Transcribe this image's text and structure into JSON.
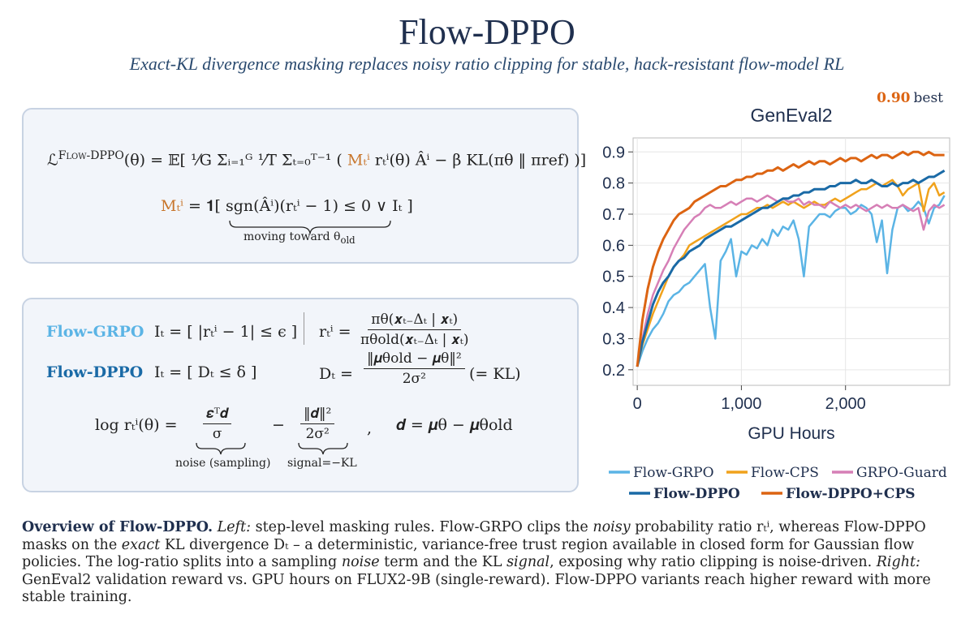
{
  "header": {
    "title": "Flow-DPPO",
    "subtitle": "Exact-KL divergence masking replaces noisy ratio clipping for stable, hack-resistant flow-model RL"
  },
  "objective_panel": {
    "loss_symbol": "ℒ",
    "loss_name": "Flow-DPPO",
    "loss_rhs": "(θ) = 𝔼[ ¹⁄G Σᵢ₌₁ᴳ ¹⁄T Σₜ₌₀ᵀ⁻¹ (",
    "mask_symbol": "Mₜⁱ",
    "loss_tail": "rₜⁱ(θ) Âⁱ − β KL(πθ ‖ πref) )]",
    "mask_eq": "= 𝟏[",
    "mask_condition": "sgn(Âⁱ)(rₜⁱ − 1) ≤ 0",
    "mask_tail": "∨  Iₜ ]",
    "brace_label": "moving toward θ",
    "brace_label_sub": "old"
  },
  "rules_panel": {
    "grpo_name": "Flow-GRPO",
    "grpo_rule": "Iₜ = [ |rₜⁱ − 1| ≤ ϵ ]",
    "dppo_name": "Flow-DPPO",
    "dppo_rule": "Iₜ = [ Dₜ ≤ δ ]",
    "ratio_lhs": "rₜⁱ =",
    "ratio_num": "πθ(𝒙ₜ₋Δₜ | 𝒙ₜ)",
    "ratio_den": "πθold(𝒙ₜ₋Δₜ | 𝒙ₜ)",
    "kl_lhs": "Dₜ =",
    "kl_num": "‖𝝁θold − 𝝁θ‖²",
    "kl_den": "2σ²",
    "kl_note": "(= KL)",
    "log_lhs": "log rₜⁱ(θ) =",
    "noise_num": "𝜺ᵀ𝒅",
    "noise_den": "σ",
    "noise_label": "noise (sampling)",
    "minus": "−",
    "signal_num": "‖𝒅‖²",
    "signal_den": "2σ²",
    "signal_label": "signal=−KL",
    "comma": ",",
    "d_def": "𝒅 = 𝝁θ − 𝝁θold"
  },
  "chart_data": {
    "type": "line",
    "title": "GenEval2",
    "x_label": "GPU Hours",
    "best": {
      "value": 0.9,
      "label": "0.90"
    },
    "best_text": "best",
    "xlim": [
      -40,
      3000
    ],
    "ylim": [
      0.15,
      0.945
    ],
    "xticks": [
      0,
      {
        "value": 1000,
        "label": "1,000"
      },
      {
        "value": 2000,
        "label": "2,000"
      }
    ],
    "yticks": [
      0.2,
      0.3,
      0.4,
      0.5,
      0.6,
      0.7,
      0.8,
      0.9
    ],
    "grid": true,
    "x": [
      0,
      50,
      100,
      150,
      200,
      250,
      300,
      350,
      400,
      450,
      500,
      550,
      600,
      650,
      700,
      750,
      800,
      850,
      900,
      950,
      1000,
      1050,
      1100,
      1150,
      1200,
      1250,
      1300,
      1350,
      1400,
      1450,
      1500,
      1550,
      1600,
      1650,
      1700,
      1750,
      1800,
      1850,
      1900,
      1950,
      2000,
      2050,
      2100,
      2150,
      2200,
      2250,
      2300,
      2350,
      2400,
      2450,
      2500,
      2550,
      2600,
      2650,
      2700,
      2750,
      2800,
      2850,
      2900,
      2950
    ],
    "series": [
      {
        "name": "Flow-GRPO",
        "color": "#5bb4e5",
        "values": [
          0.21,
          0.26,
          0.3,
          0.33,
          0.35,
          0.38,
          0.42,
          0.44,
          0.45,
          0.47,
          0.48,
          0.5,
          0.52,
          0.54,
          0.4,
          0.3,
          0.55,
          0.58,
          0.62,
          0.5,
          0.58,
          0.57,
          0.6,
          0.59,
          0.62,
          0.6,
          0.65,
          0.63,
          0.66,
          0.65,
          0.68,
          0.62,
          0.5,
          0.66,
          0.68,
          0.7,
          0.7,
          0.69,
          0.71,
          0.72,
          0.72,
          0.7,
          0.71,
          0.73,
          0.72,
          0.7,
          0.61,
          0.68,
          0.51,
          0.65,
          0.72,
          0.73,
          0.71,
          0.72,
          0.74,
          0.72,
          0.67,
          0.72,
          0.73,
          0.76
        ]
      },
      {
        "name": "Flow-CPS",
        "color": "#f0a21c",
        "values": [
          0.21,
          0.28,
          0.33,
          0.38,
          0.42,
          0.46,
          0.5,
          0.53,
          0.55,
          0.57,
          0.6,
          0.61,
          0.62,
          0.63,
          0.64,
          0.65,
          0.66,
          0.67,
          0.68,
          0.69,
          0.7,
          0.7,
          0.71,
          0.72,
          0.72,
          0.73,
          0.72,
          0.73,
          0.74,
          0.73,
          0.74,
          0.73,
          0.72,
          0.73,
          0.74,
          0.73,
          0.73,
          0.74,
          0.75,
          0.74,
          0.75,
          0.76,
          0.77,
          0.78,
          0.78,
          0.79,
          0.8,
          0.79,
          0.8,
          0.81,
          0.79,
          0.76,
          0.78,
          0.79,
          0.8,
          0.71,
          0.78,
          0.8,
          0.76,
          0.77
        ]
      },
      {
        "name": "GRPO-Guard",
        "color": "#d67fb6",
        "values": [
          0.21,
          0.3,
          0.38,
          0.44,
          0.48,
          0.52,
          0.55,
          0.59,
          0.62,
          0.65,
          0.67,
          0.69,
          0.7,
          0.72,
          0.73,
          0.72,
          0.72,
          0.73,
          0.74,
          0.73,
          0.74,
          0.75,
          0.75,
          0.74,
          0.75,
          0.76,
          0.75,
          0.74,
          0.75,
          0.74,
          0.74,
          0.75,
          0.73,
          0.74,
          0.73,
          0.73,
          0.72,
          0.74,
          0.73,
          0.72,
          0.73,
          0.72,
          0.73,
          0.72,
          0.71,
          0.72,
          0.73,
          0.72,
          0.73,
          0.72,
          0.72,
          0.73,
          0.72,
          0.71,
          0.72,
          0.65,
          0.71,
          0.73,
          0.72,
          0.73
        ]
      },
      {
        "name": "Flow-DPPO",
        "color": "#1a6aa6",
        "values": [
          0.21,
          0.29,
          0.35,
          0.41,
          0.45,
          0.48,
          0.5,
          0.53,
          0.55,
          0.56,
          0.58,
          0.59,
          0.6,
          0.62,
          0.63,
          0.64,
          0.65,
          0.66,
          0.66,
          0.67,
          0.68,
          0.69,
          0.7,
          0.71,
          0.72,
          0.72,
          0.73,
          0.74,
          0.75,
          0.75,
          0.76,
          0.76,
          0.77,
          0.77,
          0.78,
          0.78,
          0.78,
          0.79,
          0.79,
          0.8,
          0.8,
          0.8,
          0.81,
          0.8,
          0.8,
          0.81,
          0.8,
          0.79,
          0.79,
          0.8,
          0.79,
          0.8,
          0.8,
          0.81,
          0.8,
          0.81,
          0.82,
          0.82,
          0.83,
          0.84
        ]
      },
      {
        "name": "Flow-DPPO+CPS",
        "color": "#dc6412",
        "values": [
          0.21,
          0.36,
          0.46,
          0.53,
          0.58,
          0.62,
          0.65,
          0.68,
          0.7,
          0.71,
          0.72,
          0.74,
          0.75,
          0.76,
          0.77,
          0.78,
          0.79,
          0.79,
          0.8,
          0.81,
          0.81,
          0.82,
          0.82,
          0.83,
          0.83,
          0.84,
          0.84,
          0.85,
          0.84,
          0.85,
          0.86,
          0.85,
          0.86,
          0.87,
          0.86,
          0.87,
          0.87,
          0.86,
          0.87,
          0.88,
          0.87,
          0.88,
          0.88,
          0.87,
          0.88,
          0.89,
          0.88,
          0.89,
          0.89,
          0.88,
          0.89,
          0.9,
          0.89,
          0.9,
          0.9,
          0.89,
          0.9,
          0.89,
          0.89,
          0.89
        ]
      }
    ]
  },
  "caption": [
    "Overview of Flow-DPPO.",
    "Left:",
    "step-level masking rules. Flow-GRPO clips the",
    "noisy",
    "probability ratio rₜⁱ, whereas Flow-DPPO masks on the",
    "exact",
    "KL divergence Dₜ – a deterministic, variance-free trust region available in closed form for Gaussian flow policies. The log-ratio splits into a sampling",
    "noise",
    "term and the KL",
    "signal",
    ", exposing why ratio clipping is noise-driven.",
    "Right:",
    "GenEval2 validation reward vs. GPU hours on FLUX2-9B (single-reward). Flow-DPPO variants reach higher reward with more stable training."
  ]
}
